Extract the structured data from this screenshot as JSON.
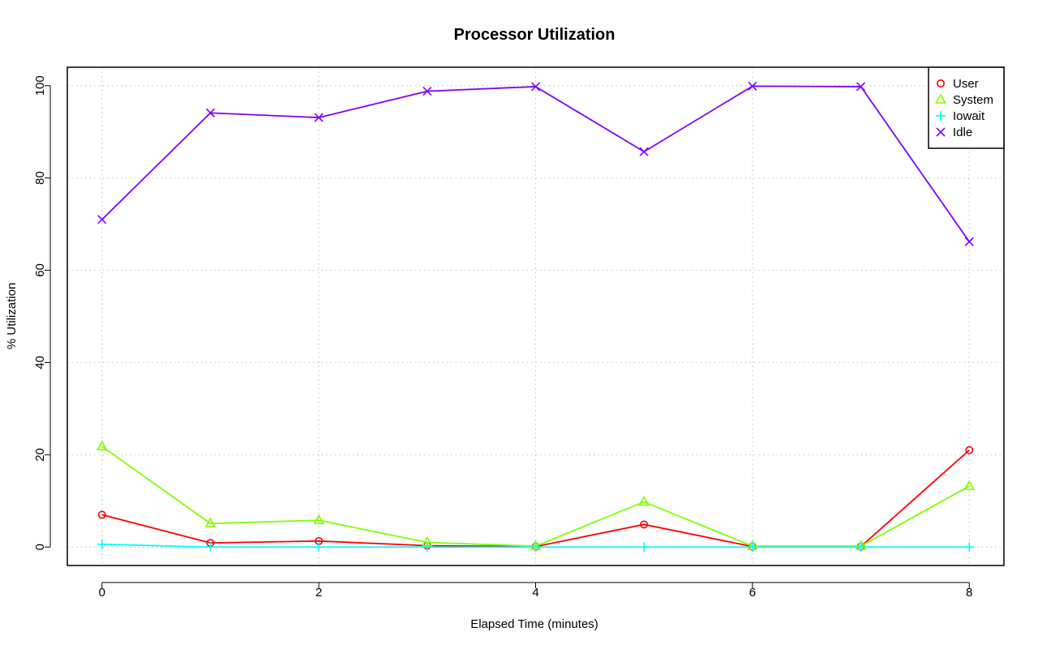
{
  "chart_data": {
    "type": "line",
    "title": "Processor Utilization",
    "xlabel": "Elapsed Time (minutes)",
    "ylabel": "% Utilization",
    "x": [
      0,
      1,
      2,
      3,
      4,
      5,
      6,
      7,
      8
    ],
    "xlim": [
      -0.32,
      8.32
    ],
    "ylim": [
      -4,
      104
    ],
    "xticks": [
      0,
      2,
      4,
      6,
      8
    ],
    "yticks": [
      0,
      20,
      40,
      60,
      80,
      100
    ],
    "grid": true,
    "legend_position": "top-right",
    "series": [
      {
        "name": "User",
        "color": "#ff0000",
        "marker": "circle",
        "values": [
          7.0,
          0.9,
          1.3,
          0.3,
          0.1,
          4.9,
          0.1,
          0.1,
          21.0
        ]
      },
      {
        "name": "System",
        "color": "#80ff00",
        "marker": "triangle",
        "values": [
          21.8,
          5.1,
          5.8,
          1.0,
          0.2,
          9.8,
          0.2,
          0.2,
          13.2
        ]
      },
      {
        "name": "Iowait",
        "color": "#00ffff",
        "marker": "plus",
        "values": [
          0.6,
          0.0,
          0.0,
          0.0,
          0.0,
          0.0,
          0.0,
          0.0,
          0.0
        ]
      },
      {
        "name": "Idle",
        "color": "#8000ff",
        "marker": "cross",
        "values": [
          71.0,
          94.1,
          93.1,
          98.8,
          99.8,
          85.7,
          99.9,
          99.8,
          66.2
        ]
      }
    ]
  }
}
